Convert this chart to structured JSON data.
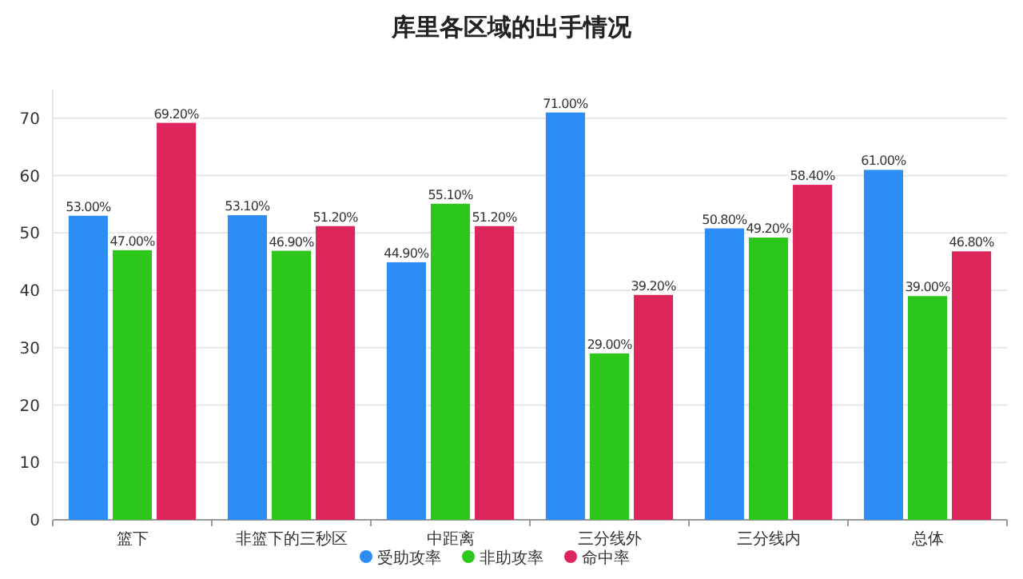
{
  "chart_data": {
    "type": "bar",
    "title": "库里各区域的出手情况",
    "categories": [
      "篮下",
      "非篮下的三秒区",
      "中距离",
      "三分线外",
      "三分线内",
      "总体"
    ],
    "series": [
      {
        "name": "受助攻率",
        "color": "#2e8df5",
        "values": [
          53,
          53.1,
          44.9,
          71,
          50.8,
          61
        ],
        "value_labels": [
          "53.00%",
          "53.10%",
          "44.90%",
          "71.00%",
          "50.80%",
          "61.00%"
        ]
      },
      {
        "name": "非助攻率",
        "color": "#2dc61a",
        "values": [
          47,
          46.9,
          55.1,
          29,
          49.2,
          39
        ],
        "value_labels": [
          "47.00%",
          "46.90%",
          "55.10%",
          "29.00%",
          "49.20%",
          "39.00%"
        ]
      },
      {
        "name": "命中率",
        "color": "#dd255b",
        "values": [
          69.2,
          51.2,
          51.2,
          39.2,
          58.4,
          46.8
        ],
        "value_labels": [
          "69.20%",
          "51.20%",
          "51.20%",
          "39.20%",
          "58.40%",
          "46.80%"
        ]
      }
    ],
    "ylim": [
      0,
      75
    ],
    "yticks": [
      0,
      10,
      20,
      30,
      40,
      50,
      60,
      70
    ],
    "grid": "y",
    "legend": "bottom"
  }
}
